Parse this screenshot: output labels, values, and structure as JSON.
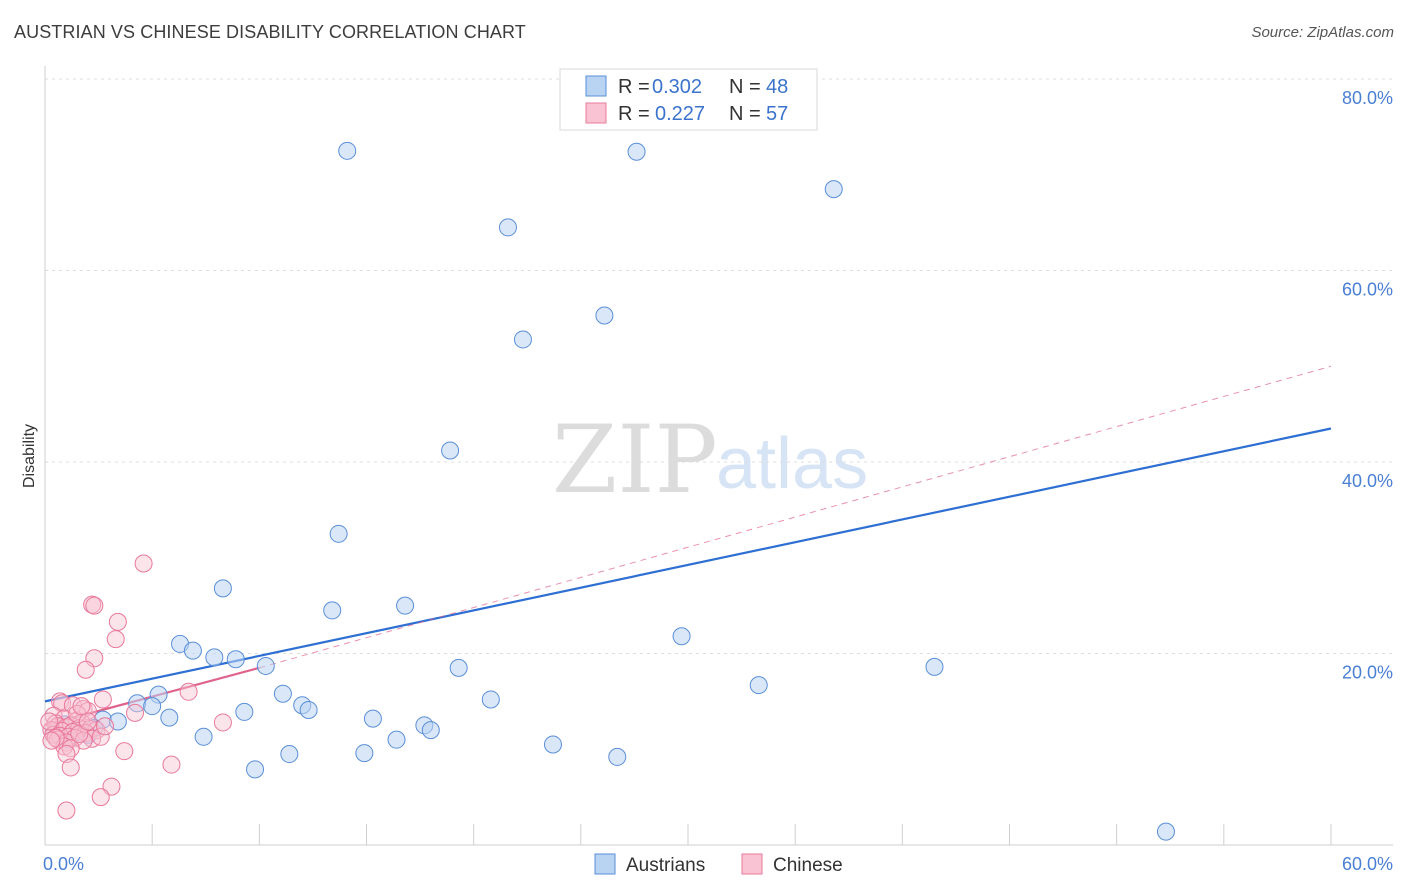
{
  "title": "AUSTRIAN VS CHINESE DISABILITY CORRELATION CHART",
  "source": "Source: ZipAtlas.com",
  "watermark": {
    "zip": "ZIP",
    "atlas": "atlas"
  },
  "colors": {
    "austrians_fill": "#b9d3f3",
    "austrians_stroke": "#5b8fd8",
    "austrians_line": "#2d6fd2",
    "chinese_fill": "#f9c3d3",
    "chinese_stroke": "#e9799b",
    "chinese_line": "#e0638c",
    "tick_text": "#4a7fd4",
    "grid": "#dddddd"
  },
  "legend": {
    "rows": [
      {
        "r_label": "R =",
        "r_value": "0.302",
        "n_label": "N =",
        "n_value": "48"
      },
      {
        "r_label": "R =",
        "r_value": "0.227",
        "n_label": "N =",
        "n_value": "57"
      }
    ]
  },
  "chart_data": {
    "type": "scatter",
    "title": "AUSTRIAN VS CHINESE DISABILITY CORRELATION CHART",
    "xlabel": "",
    "ylabel": "Disability",
    "xlim": [
      0,
      60
    ],
    "ylim": [
      0,
      80
    ],
    "x_tick_labels": [
      "0.0%",
      "60.0%"
    ],
    "y_ticks": [
      20,
      40,
      60,
      80
    ],
    "y_tick_labels": [
      "20.0%",
      "40.0%",
      "60.0%",
      "80.0%"
    ],
    "grid": true,
    "legend_position": "bottom-center",
    "series": [
      {
        "name": "Austrians",
        "R": 0.302,
        "N": 48,
        "trend": {
          "x": [
            0,
            60
          ],
          "y": [
            15.0,
            43.5
          ]
        },
        "points": [
          [
            14.1,
            72.5
          ],
          [
            27.6,
            72.4
          ],
          [
            36.8,
            68.5
          ],
          [
            21.6,
            64.5
          ],
          [
            26.1,
            55.3
          ],
          [
            22.3,
            52.8
          ],
          [
            18.9,
            41.2
          ],
          [
            13.7,
            32.5
          ],
          [
            8.3,
            26.8
          ],
          [
            16.8,
            25.0
          ],
          [
            13.4,
            24.5
          ],
          [
            29.7,
            21.8
          ],
          [
            6.3,
            21.0
          ],
          [
            6.9,
            20.3
          ],
          [
            7.9,
            19.6
          ],
          [
            8.9,
            19.4
          ],
          [
            10.3,
            18.7
          ],
          [
            19.3,
            18.5
          ],
          [
            41.5,
            18.6
          ],
          [
            33.3,
            16.7
          ],
          [
            11.1,
            15.8
          ],
          [
            5.3,
            15.7
          ],
          [
            20.8,
            15.2
          ],
          [
            4.3,
            14.8
          ],
          [
            5.0,
            14.5
          ],
          [
            12.0,
            14.6
          ],
          [
            12.3,
            14.1
          ],
          [
            9.3,
            13.9
          ],
          [
            2.7,
            13.1
          ],
          [
            3.4,
            12.9
          ],
          [
            5.8,
            13.3
          ],
          [
            15.3,
            13.2
          ],
          [
            17.7,
            12.5
          ],
          [
            18.0,
            12.0
          ],
          [
            2.3,
            12.2
          ],
          [
            1.5,
            11.8
          ],
          [
            7.4,
            11.3
          ],
          [
            16.4,
            11.0
          ],
          [
            23.7,
            10.5
          ],
          [
            0.4,
            11.6
          ],
          [
            1.1,
            11.0
          ],
          [
            14.9,
            9.6
          ],
          [
            11.4,
            9.5
          ],
          [
            26.7,
            9.2
          ],
          [
            9.8,
            7.9
          ],
          [
            52.3,
            1.4
          ],
          [
            0.9,
            12.6
          ],
          [
            2.0,
            11.5
          ]
        ]
      },
      {
        "name": "Chinese",
        "R": 0.227,
        "N": 57,
        "trend": {
          "x": [
            0,
            10.0
          ],
          "y": [
            12.5,
            18.5
          ]
        },
        "trend_extended": {
          "x": [
            10.0,
            60
          ],
          "y": [
            18.5,
            50.0
          ]
        },
        "points": [
          [
            4.6,
            29.4
          ],
          [
            2.2,
            25.1
          ],
          [
            2.3,
            25.0
          ],
          [
            3.4,
            23.3
          ],
          [
            3.3,
            21.5
          ],
          [
            2.3,
            19.5
          ],
          [
            1.9,
            18.3
          ],
          [
            6.7,
            16.0
          ],
          [
            2.7,
            15.2
          ],
          [
            0.7,
            15.0
          ],
          [
            0.8,
            14.8
          ],
          [
            1.3,
            14.6
          ],
          [
            1.8,
            14.2
          ],
          [
            2.0,
            14.0
          ],
          [
            4.2,
            13.8
          ],
          [
            0.4,
            13.5
          ],
          [
            0.9,
            13.2
          ],
          [
            1.5,
            13.0
          ],
          [
            1.7,
            12.8
          ],
          [
            8.3,
            12.8
          ],
          [
            0.5,
            12.7
          ],
          [
            0.6,
            12.4
          ],
          [
            1.0,
            12.3
          ],
          [
            1.2,
            12.5
          ],
          [
            1.6,
            12.2
          ],
          [
            2.1,
            12.1
          ],
          [
            2.4,
            12.0
          ],
          [
            0.3,
            12.0
          ],
          [
            0.8,
            11.9
          ],
          [
            1.3,
            11.8
          ],
          [
            1.9,
            11.7
          ],
          [
            0.4,
            11.5
          ],
          [
            0.7,
            11.4
          ],
          [
            1.1,
            11.3
          ],
          [
            1.4,
            11.2
          ],
          [
            2.2,
            11.1
          ],
          [
            2.6,
            11.3
          ],
          [
            0.6,
            11.0
          ],
          [
            1.8,
            10.9
          ],
          [
            1.0,
            10.7
          ],
          [
            0.9,
            10.3
          ],
          [
            1.2,
            10.1
          ],
          [
            3.7,
            9.8
          ],
          [
            1.0,
            9.5
          ],
          [
            5.9,
            8.4
          ],
          [
            1.2,
            8.1
          ],
          [
            3.1,
            6.1
          ],
          [
            2.6,
            5.0
          ],
          [
            1.0,
            3.6
          ],
          [
            0.2,
            12.9
          ],
          [
            1.5,
            13.7
          ],
          [
            2.8,
            12.4
          ],
          [
            0.5,
            11.2
          ],
          [
            1.6,
            11.6
          ],
          [
            2.0,
            12.9
          ],
          [
            0.3,
            10.9
          ],
          [
            1.7,
            14.5
          ]
        ]
      }
    ]
  },
  "bottom_legend": {
    "items": [
      "Austrians",
      "Chinese"
    ]
  }
}
